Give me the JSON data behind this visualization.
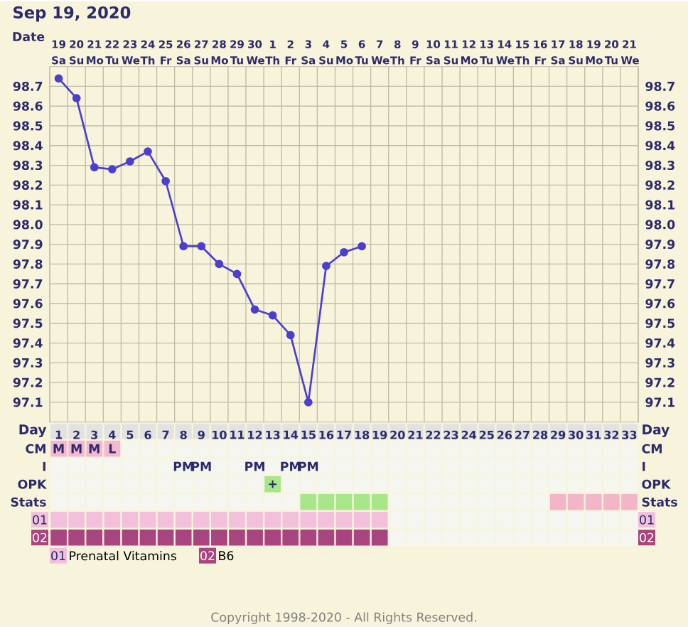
{
  "chart_data": {
    "type": "line",
    "title": "Sep 19, 2020",
    "categories": [
      "19 Sa",
      "20 Su",
      "21 Mo",
      "22 Tu",
      "23 We",
      "24 Th",
      "25 Fr",
      "26 Sa",
      "27 Su",
      "28 Mo",
      "29 Tu",
      "30 We",
      "1 Th",
      "2 Fr",
      "3 Sa",
      "4 Su",
      "5 Mo",
      "6 Tu",
      "7 We",
      "8 Th",
      "9 Fr",
      "10 Sa",
      "11 Su",
      "12 Mo",
      "13 Tu",
      "14 We",
      "15 Th",
      "16 Fr",
      "17 Sa",
      "18 Su",
      "19 Mo",
      "20 Tu",
      "21 We"
    ],
    "series": [
      {
        "color": "#4a3fd0",
        "values": [
          98.74,
          98.64,
          98.29,
          98.28,
          98.32,
          98.37,
          98.22,
          97.89,
          97.89,
          97.8,
          97.75,
          97.57,
          97.54,
          97.44,
          97.1,
          97.79,
          97.86,
          97.89,
          null,
          null,
          null,
          null,
          null,
          null,
          null,
          null,
          null,
          null,
          null,
          null,
          null,
          null,
          null
        ]
      }
    ],
    "ylim": [
      97.0,
      98.8
    ],
    "yticks": [
      97.1,
      97.2,
      97.3,
      97.4,
      97.5,
      97.6,
      97.7,
      97.8,
      97.9,
      {
        "value": 98,
        "label": "98.0"
      },
      98.1,
      98.2,
      98.3,
      98.4,
      98.5,
      98.6,
      98.7
    ],
    "y2lim": [
      97.0,
      98.8
    ],
    "y2ticks": [
      97.1,
      97.2,
      97.3,
      97.4,
      97.5,
      97.6,
      97.7,
      97.8,
      97.9,
      {
        "value": 98,
        "label": "98.0"
      },
      98.1,
      98.2,
      98.3,
      98.4,
      98.5,
      98.6,
      98.7
    ],
    "x2lim": [
      0.5,
      33.5
    ],
    "x2ticks": [
      1,
      2,
      3,
      4,
      5,
      6,
      7,
      8,
      9,
      10,
      11,
      12,
      13,
      14,
      15,
      16,
      17,
      18,
      19,
      20,
      21,
      22,
      23,
      24,
      25,
      26,
      27,
      28,
      29,
      30,
      31,
      32,
      33
    ],
    "grid": true,
    "marker": "circle",
    "annotations": [
      "Date",
      "Day",
      "Day",
      "CM",
      "CM",
      "I",
      "I",
      "OPK",
      "OPK",
      "Stats",
      "Stats",
      "01",
      "01",
      "02",
      "02",
      "M",
      "M",
      "M",
      "L",
      "PM",
      "PM",
      "PM",
      "PM",
      "PM",
      "+",
      "01",
      "Prenatal Vitamins",
      "02",
      "B6",
      "Copyright 1998-2020 - All Rights Reserved."
    ]
  }
}
